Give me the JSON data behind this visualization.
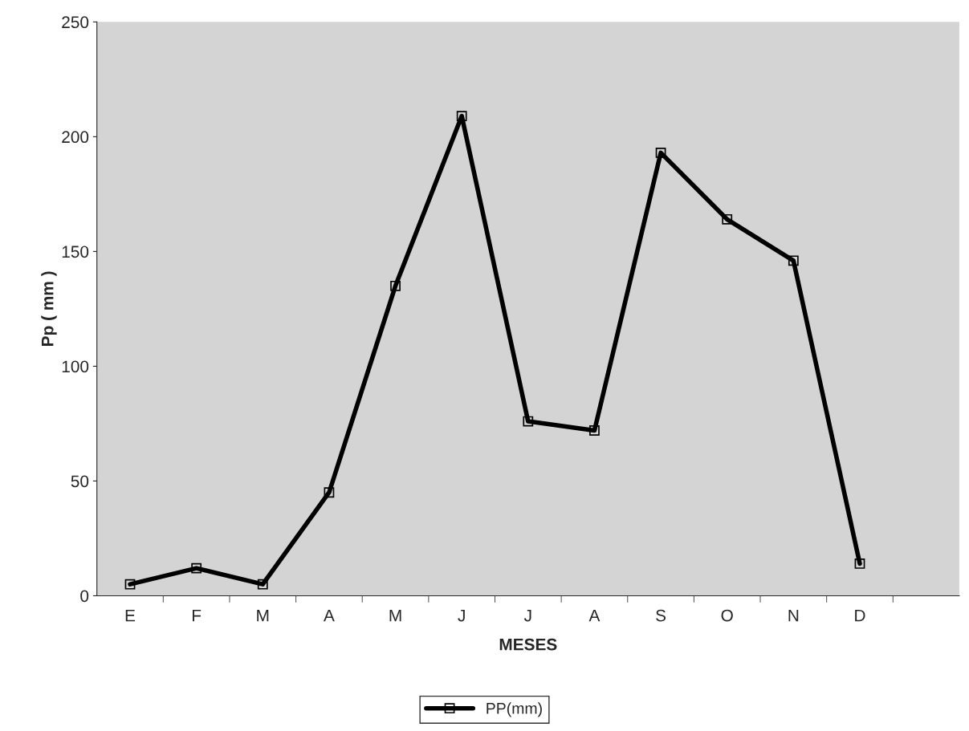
{
  "chart_data": {
    "type": "line",
    "xlabel": "MESES",
    "ylabel": "Pp ( mm )",
    "categories": [
      "E",
      "F",
      "M",
      "A",
      "M",
      "J",
      "J",
      "A",
      "S",
      "O",
      "N",
      "D",
      null
    ],
    "series": [
      {
        "name": "PP(mm)",
        "color": "#000000",
        "values": [
          5,
          12,
          5,
          45,
          135,
          209,
          76,
          72,
          193,
          164,
          146,
          14,
          null
        ]
      }
    ],
    "ylim": [
      0,
      250
    ],
    "yticks": [
      0,
      50,
      100,
      150,
      200,
      250
    ],
    "marker": "square",
    "line_style": "solid",
    "legend": "bottom",
    "grid": false
  }
}
